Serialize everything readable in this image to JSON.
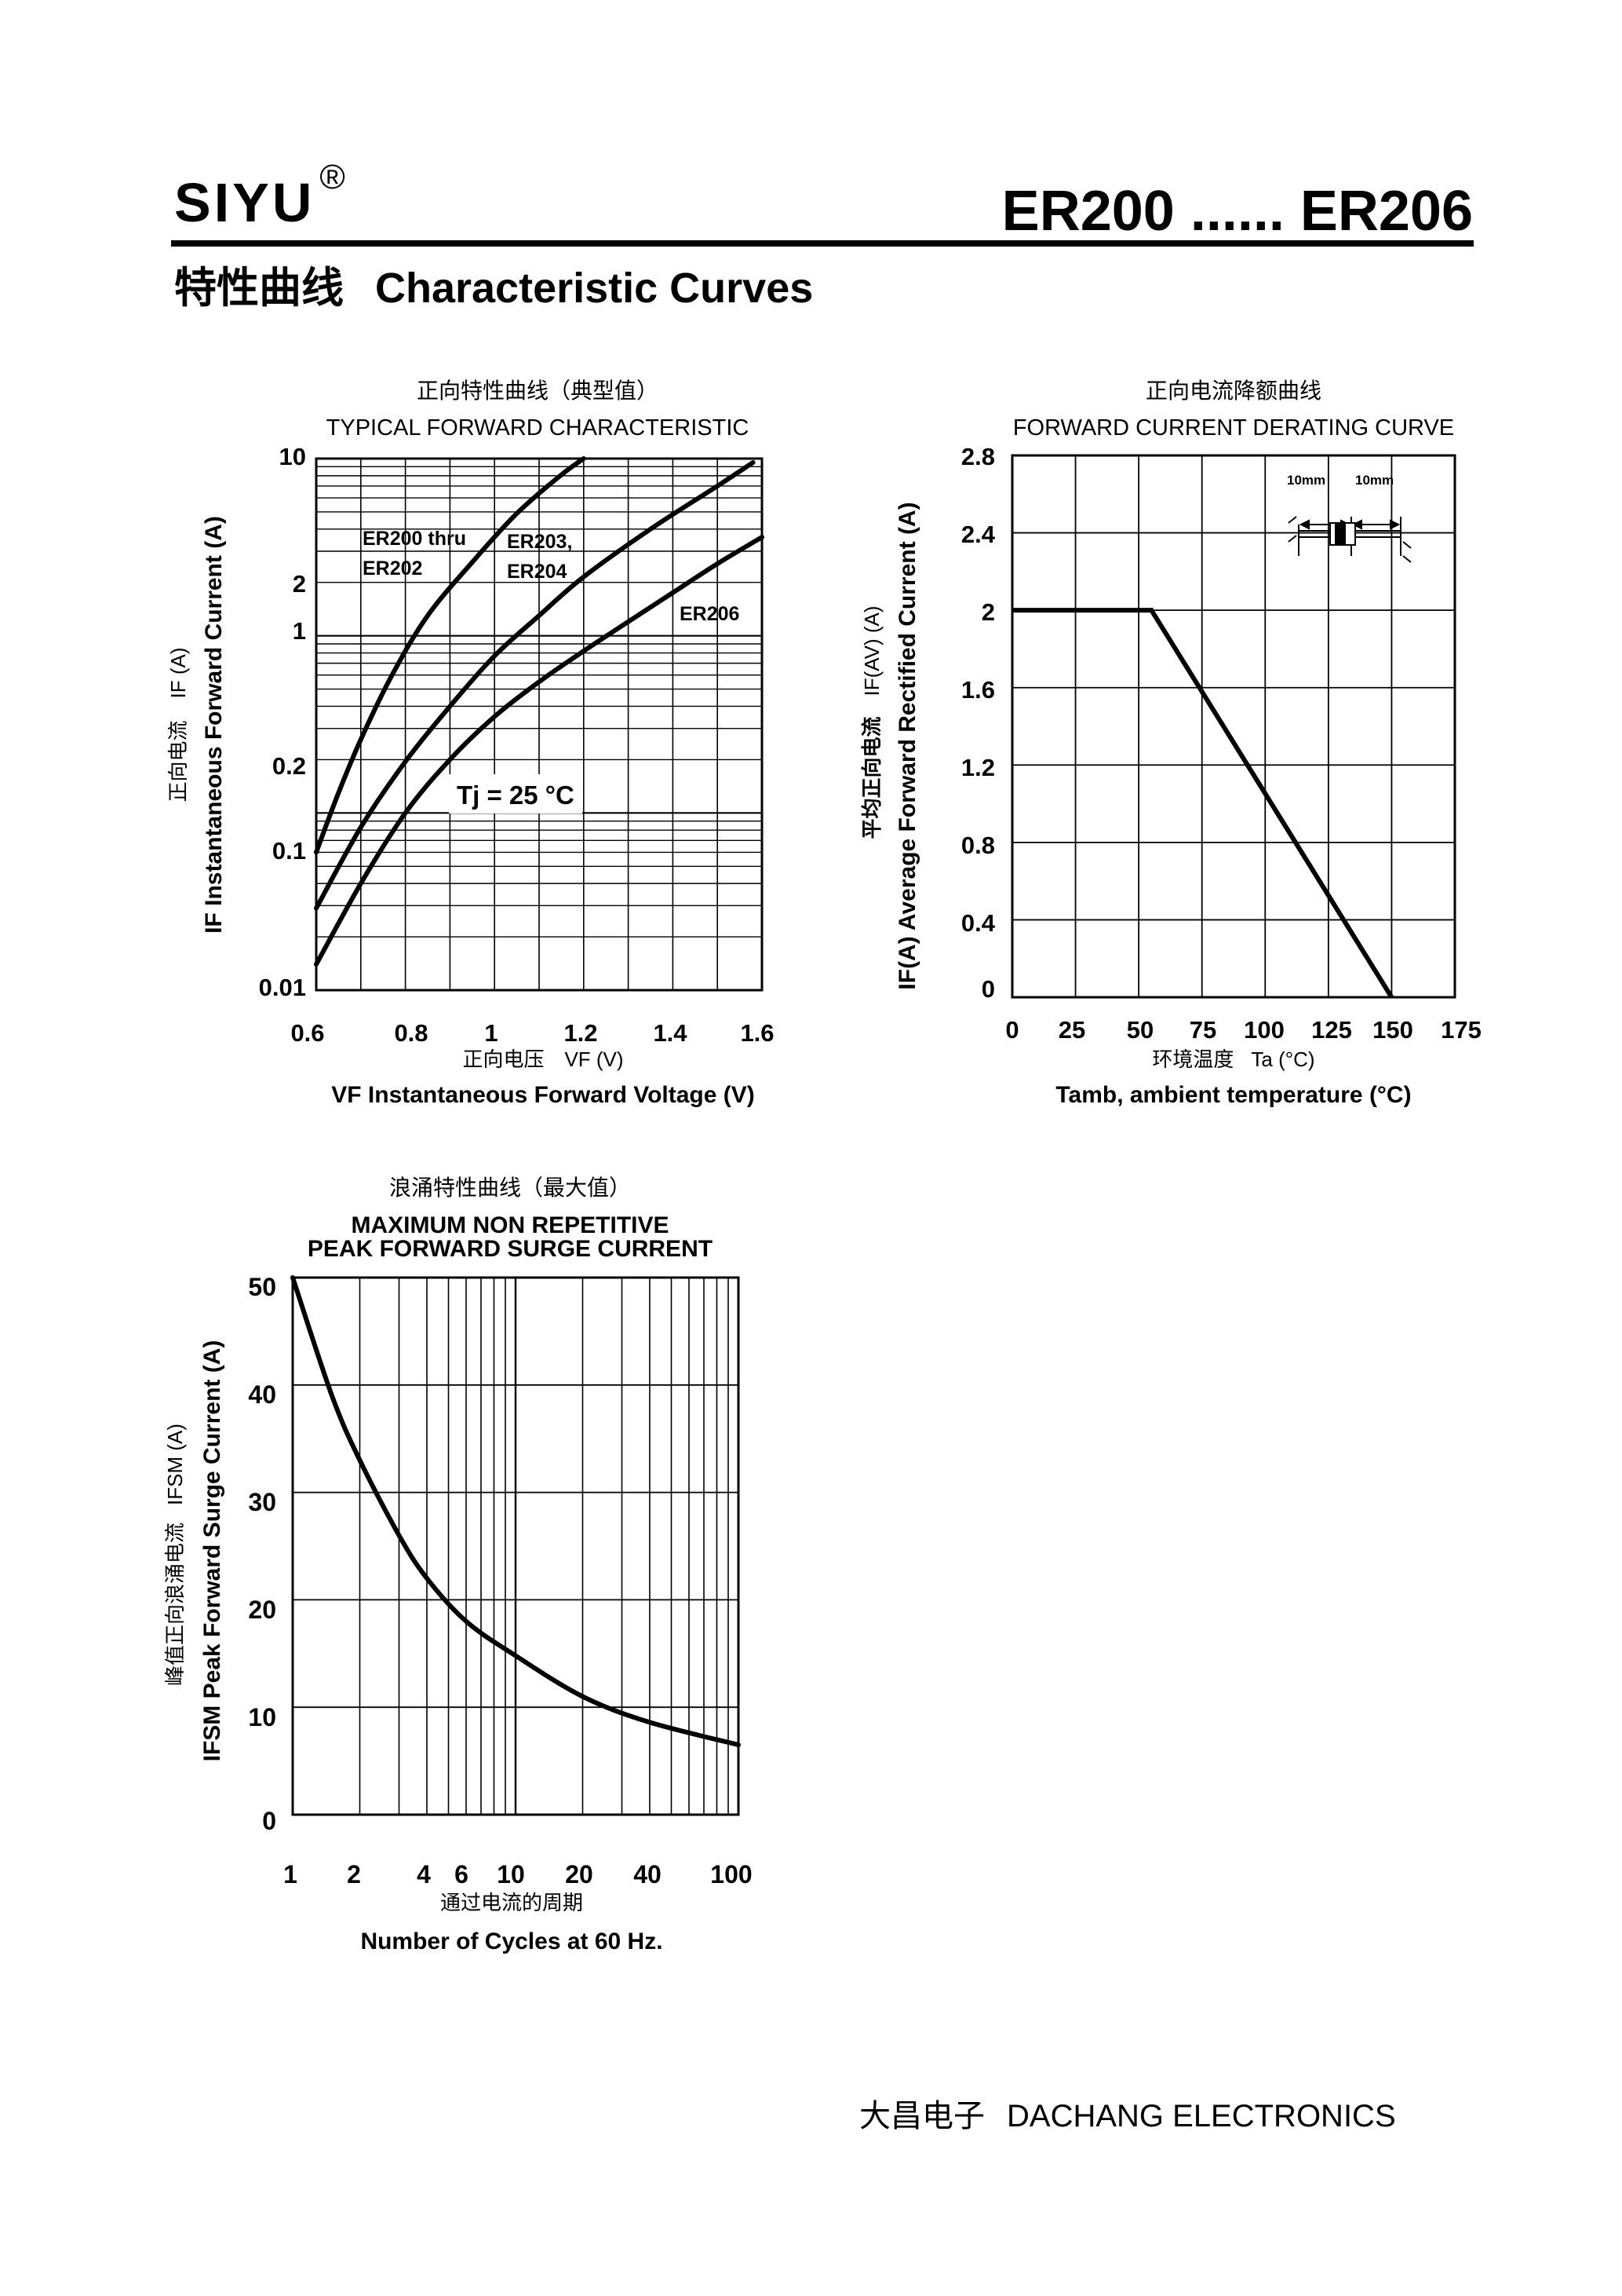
{
  "header": {
    "brand": "SIYU",
    "registered_mark": "®",
    "model_range": "ER200 ...... ER206"
  },
  "section": {
    "title_cn": "特性曲线",
    "title_en": "Characteristic Curves"
  },
  "footer": {
    "company_cn": "大昌电子",
    "company_en": "DACHANG ELECTRONICS"
  },
  "chart_data": [
    {
      "id": "forward",
      "type": "line",
      "title_cn": "正向特性曲线（典型值）",
      "title": "TYPICAL FORWARD CHARACTERISTIC",
      "y_scale": "log",
      "xlim": [
        0.6,
        1.6
      ],
      "ylim": [
        0.01,
        10
      ],
      "x_ticks": [
        "0.6",
        "0.8",
        "1",
        "1.2",
        "1.4",
        "1.6"
      ],
      "y_ticks": [
        "10",
        "2",
        "1",
        "0.2",
        "0.1",
        "0.01"
      ],
      "xlabel_cn": "正向电压",
      "xlabel_sym": "VF (V)",
      "xlabel": "VF Instantaneous Forward Voltage (V)",
      "ylabel_cn": "正向电流",
      "ylabel_sym": "IF (A)",
      "ylabel": "IF Instantaneous Forward Current (A)",
      "annotation": "Tj = 25 °C",
      "series": [
        {
          "name": "ER200 thru ER202",
          "label_line1": "ER200 thru",
          "label_line2": "ER202",
          "x": [
            0.6,
            0.65,
            0.7,
            0.77,
            0.85,
            0.95,
            1.05,
            1.15,
            1.2
          ],
          "y": [
            0.06,
            0.13,
            0.26,
            0.6,
            1.3,
            2.6,
            4.9,
            8.1,
            10
          ]
        },
        {
          "name": "ER203, ER204",
          "label_line1": "ER203,",
          "label_line2": "ER204",
          "x": [
            0.6,
            0.7,
            0.8,
            0.9,
            1.0,
            1.1,
            1.2,
            1.35,
            1.5,
            1.58
          ],
          "y": [
            0.029,
            0.083,
            0.195,
            0.4,
            0.77,
            1.3,
            2.15,
            4.0,
            7.0,
            9.5
          ]
        },
        {
          "name": "ER206",
          "label_line1": "ER206",
          "x": [
            0.6,
            0.7,
            0.8,
            0.9,
            1.0,
            1.1,
            1.2,
            1.3,
            1.4,
            1.5,
            1.6
          ],
          "y": [
            0.014,
            0.04,
            0.1,
            0.2,
            0.35,
            0.55,
            0.82,
            1.2,
            1.75,
            2.55,
            3.6
          ]
        }
      ]
    },
    {
      "id": "derating",
      "type": "line",
      "title_cn": "正向电流降额曲线",
      "title": "FORWARD CURRENT DERATING CURVE",
      "xlim": [
        0,
        175
      ],
      "ylim": [
        0,
        2.8
      ],
      "x_ticks": [
        "0",
        "25",
        "50",
        "75",
        "100",
        "125",
        "150",
        "175"
      ],
      "y_ticks": [
        "2.8",
        "2.4",
        "2",
        "1.6",
        "1.2",
        "0.8",
        "0.4",
        "0"
      ],
      "xlabel_cn": "环境温度",
      "xlabel_sym": "Ta (°C)",
      "xlabel": "Tamb, ambient temperature (°C)",
      "ylabel_cn": "平均正向电流",
      "ylabel_sym": "IF(AV) (A)",
      "ylabel": "IF(A) Average Forward Rectified Current (A)",
      "inset_lead_left": "10mm",
      "inset_lead_right": "10mm",
      "series": [
        {
          "name": "derating",
          "x": [
            0,
            55,
            150
          ],
          "y": [
            2.0,
            2.0,
            0.0
          ]
        }
      ]
    },
    {
      "id": "surge",
      "type": "line",
      "title_cn": "浪涌特性曲线（最大值）",
      "title_line1": "MAXIMUM NON REPETITIVE",
      "title_line2": "PEAK FORWARD SURGE CURRENT",
      "x_scale": "log",
      "xlim": [
        1,
        100
      ],
      "ylim": [
        0,
        50
      ],
      "x_ticks": [
        "1",
        "2",
        "4",
        "6",
        "10",
        "20",
        "40",
        "100"
      ],
      "y_ticks": [
        "50",
        "40",
        "30",
        "20",
        "10",
        "0"
      ],
      "xlabel_cn": "通过电流的周期",
      "xlabel": "Number  of  Cycles at 60 Hz.",
      "ylabel_cn": "峰值正向浪涌电流",
      "ylabel_sym": "IFSM (A)",
      "ylabel": "IFSM Peak Forward Surge Current (A)",
      "series": [
        {
          "name": "surge",
          "x": [
            1,
            1.5,
            2,
            3,
            4,
            6,
            10,
            20,
            40,
            100
          ],
          "y": [
            50,
            39,
            33,
            26,
            22,
            18,
            14.8,
            11,
            8.6,
            6.5
          ]
        }
      ]
    }
  ]
}
